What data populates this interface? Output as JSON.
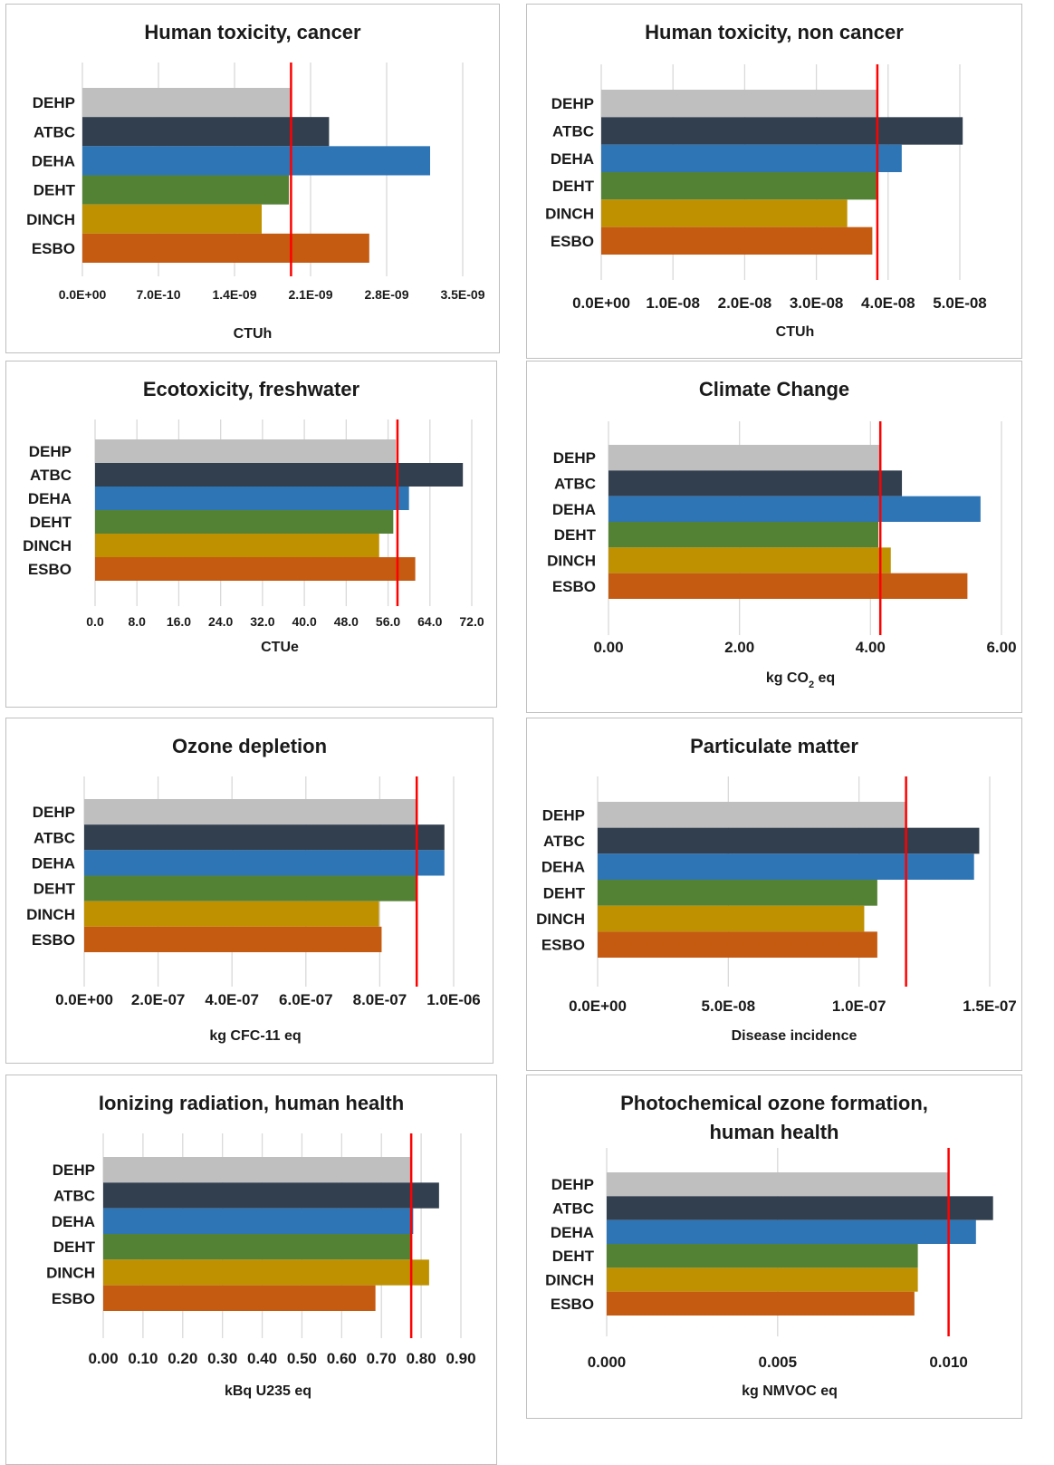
{
  "colors": {
    "DEHP": "#bfbfbf",
    "ATBC": "#323f4f",
    "DEHA": "#2e75b6",
    "DEHT": "#548235",
    "DINCH": "#bf9000",
    "ESBO": "#c55a11",
    "reference_line": "#ff0000"
  },
  "chart_data": [
    {
      "type": "bar",
      "title": "Human toxicity, cancer",
      "xlabel": "CTUh",
      "categories": [
        "DEHP",
        "ATBC",
        "DEHA",
        "DEHT",
        "DINCH",
        "ESBO"
      ],
      "values": [
        1.92e-09,
        2.27e-09,
        3.2e-09,
        1.9e-09,
        1.65e-09,
        2.64e-09
      ],
      "reference_value": 1.92e-09,
      "xlim": [
        0,
        3.5e-09
      ],
      "xticks": [
        0,
        7e-10,
        1.4e-09,
        2.1e-09,
        2.8e-09,
        3.5e-09
      ],
      "xtick_labels": [
        "0.0E+00",
        "7.0E-10",
        "1.4E-09",
        "2.1E-09",
        "2.8E-09",
        "3.5E-09"
      ],
      "grid": true
    },
    {
      "type": "bar",
      "title": "Human toxicity, non cancer",
      "xlabel": "CTUh",
      "categories": [
        "DEHP",
        "ATBC",
        "DEHA",
        "DEHT",
        "DINCH",
        "ESBO"
      ],
      "values": [
        3.85e-08,
        5.04e-08,
        4.19e-08,
        3.86e-08,
        3.43e-08,
        3.78e-08
      ],
      "reference_value": 3.85e-08,
      "xlim": [
        0,
        5e-08
      ],
      "xticks": [
        0,
        1e-08,
        2e-08,
        3e-08,
        4e-08,
        5e-08
      ],
      "xtick_labels": [
        "0.0E+00",
        "1.0E-08",
        "2.0E-08",
        "3.0E-08",
        "4.0E-08",
        "5.0E-08"
      ],
      "grid": true
    },
    {
      "type": "bar",
      "title": "Ecotoxicity, freshwater",
      "xlabel": "CTUe",
      "categories": [
        "DEHP",
        "ATBC",
        "DEHA",
        "DEHT",
        "DINCH",
        "ESBO"
      ],
      "values": [
        57.5,
        70.3,
        60.0,
        57.0,
        54.3,
        61.2
      ],
      "reference_value": 57.8,
      "xlim": [
        0,
        72
      ],
      "xticks": [
        0,
        8,
        16,
        24,
        32,
        40,
        48,
        56,
        64,
        72
      ],
      "xtick_labels": [
        "0.0",
        "8.0",
        "16.0",
        "24.0",
        "32.0",
        "40.0",
        "48.0",
        "56.0",
        "64.0",
        "72.0"
      ],
      "grid": true
    },
    {
      "type": "bar",
      "title": "Climate Change",
      "xlabel": "kg CO",
      "xlabel_subscript": "2",
      "xlabel_suffix": " eq",
      "categories": [
        "DEHP",
        "ATBC",
        "DEHA",
        "DEHT",
        "DINCH",
        "ESBO"
      ],
      "values": [
        4.15,
        4.48,
        5.68,
        4.12,
        4.31,
        5.48
      ],
      "reference_value": 4.15,
      "xlim": [
        0,
        6
      ],
      "xticks": [
        0,
        2,
        4,
        6
      ],
      "xtick_labels": [
        "0.00",
        "2.00",
        "4.00",
        "6.00"
      ],
      "grid": true
    },
    {
      "type": "bar",
      "title": "Ozone depletion",
      "xlabel": "kg CFC-11 eq",
      "categories": [
        "DEHP",
        "ATBC",
        "DEHA",
        "DEHT",
        "DINCH",
        "ESBO"
      ],
      "values": [
        9e-07,
        9.75e-07,
        9.75e-07,
        9e-07,
        7.98e-07,
        8.05e-07
      ],
      "reference_value": 9e-07,
      "xlim": [
        0,
        1e-06
      ],
      "xticks": [
        0,
        2e-07,
        4e-07,
        6e-07,
        8e-07,
        1e-06
      ],
      "xtick_labels": [
        "0.0E+00",
        "2.0E-07",
        "4.0E-07",
        "6.0E-07",
        "8.0E-07",
        "1.0E-06"
      ],
      "grid": true
    },
    {
      "type": "bar",
      "title": "Particulate matter",
      "xlabel": "Disease incidence",
      "categories": [
        "DEHP",
        "ATBC",
        "DEHA",
        "DEHT",
        "DINCH",
        "ESBO"
      ],
      "values": [
        1.18e-07,
        1.46e-07,
        1.44e-07,
        1.07e-07,
        1.02e-07,
        1.07e-07
      ],
      "reference_value": 1.18e-07,
      "xlim": [
        0,
        1.5e-07
      ],
      "xticks": [
        0,
        5e-08,
        1e-07,
        1.5e-07
      ],
      "xtick_labels": [
        "0.0E+00",
        "5.0E-08",
        "1.0E-07",
        "1.5E-07"
      ],
      "grid": true
    },
    {
      "type": "bar",
      "title": "Ionizing radiation, human health",
      "xlabel": "kBq U235 eq",
      "categories": [
        "DEHP",
        "ATBC",
        "DEHA",
        "DEHT",
        "DINCH",
        "ESBO"
      ],
      "values": [
        0.775,
        0.845,
        0.78,
        0.775,
        0.82,
        0.685
      ],
      "reference_value": 0.775,
      "xlim": [
        0,
        0.9
      ],
      "xticks": [
        0,
        0.1,
        0.2,
        0.3,
        0.4,
        0.5,
        0.6,
        0.7,
        0.8,
        0.9
      ],
      "xtick_labels": [
        "0.00",
        "0.10",
        "0.20",
        "0.30",
        "0.40",
        "0.50",
        "0.60",
        "0.70",
        "0.80",
        "0.90"
      ],
      "grid": true
    },
    {
      "type": "bar",
      "title": "Photochemical ozone formation, human health",
      "title_lines": [
        "Photochemical ozone formation,",
        "human health"
      ],
      "xlabel": "kg NMVOC eq",
      "categories": [
        "DEHP",
        "ATBC",
        "DEHA",
        "DEHT",
        "DINCH",
        "ESBO"
      ],
      "values": [
        0.01,
        0.0113,
        0.0108,
        0.0091,
        0.0091,
        0.009
      ],
      "reference_value": 0.01,
      "xlim": [
        0,
        0.0125
      ],
      "xticks": [
        0,
        0.005,
        0.01
      ],
      "xtick_labels": [
        "0.000",
        "0.005",
        "0.010"
      ],
      "grid": true
    }
  ]
}
